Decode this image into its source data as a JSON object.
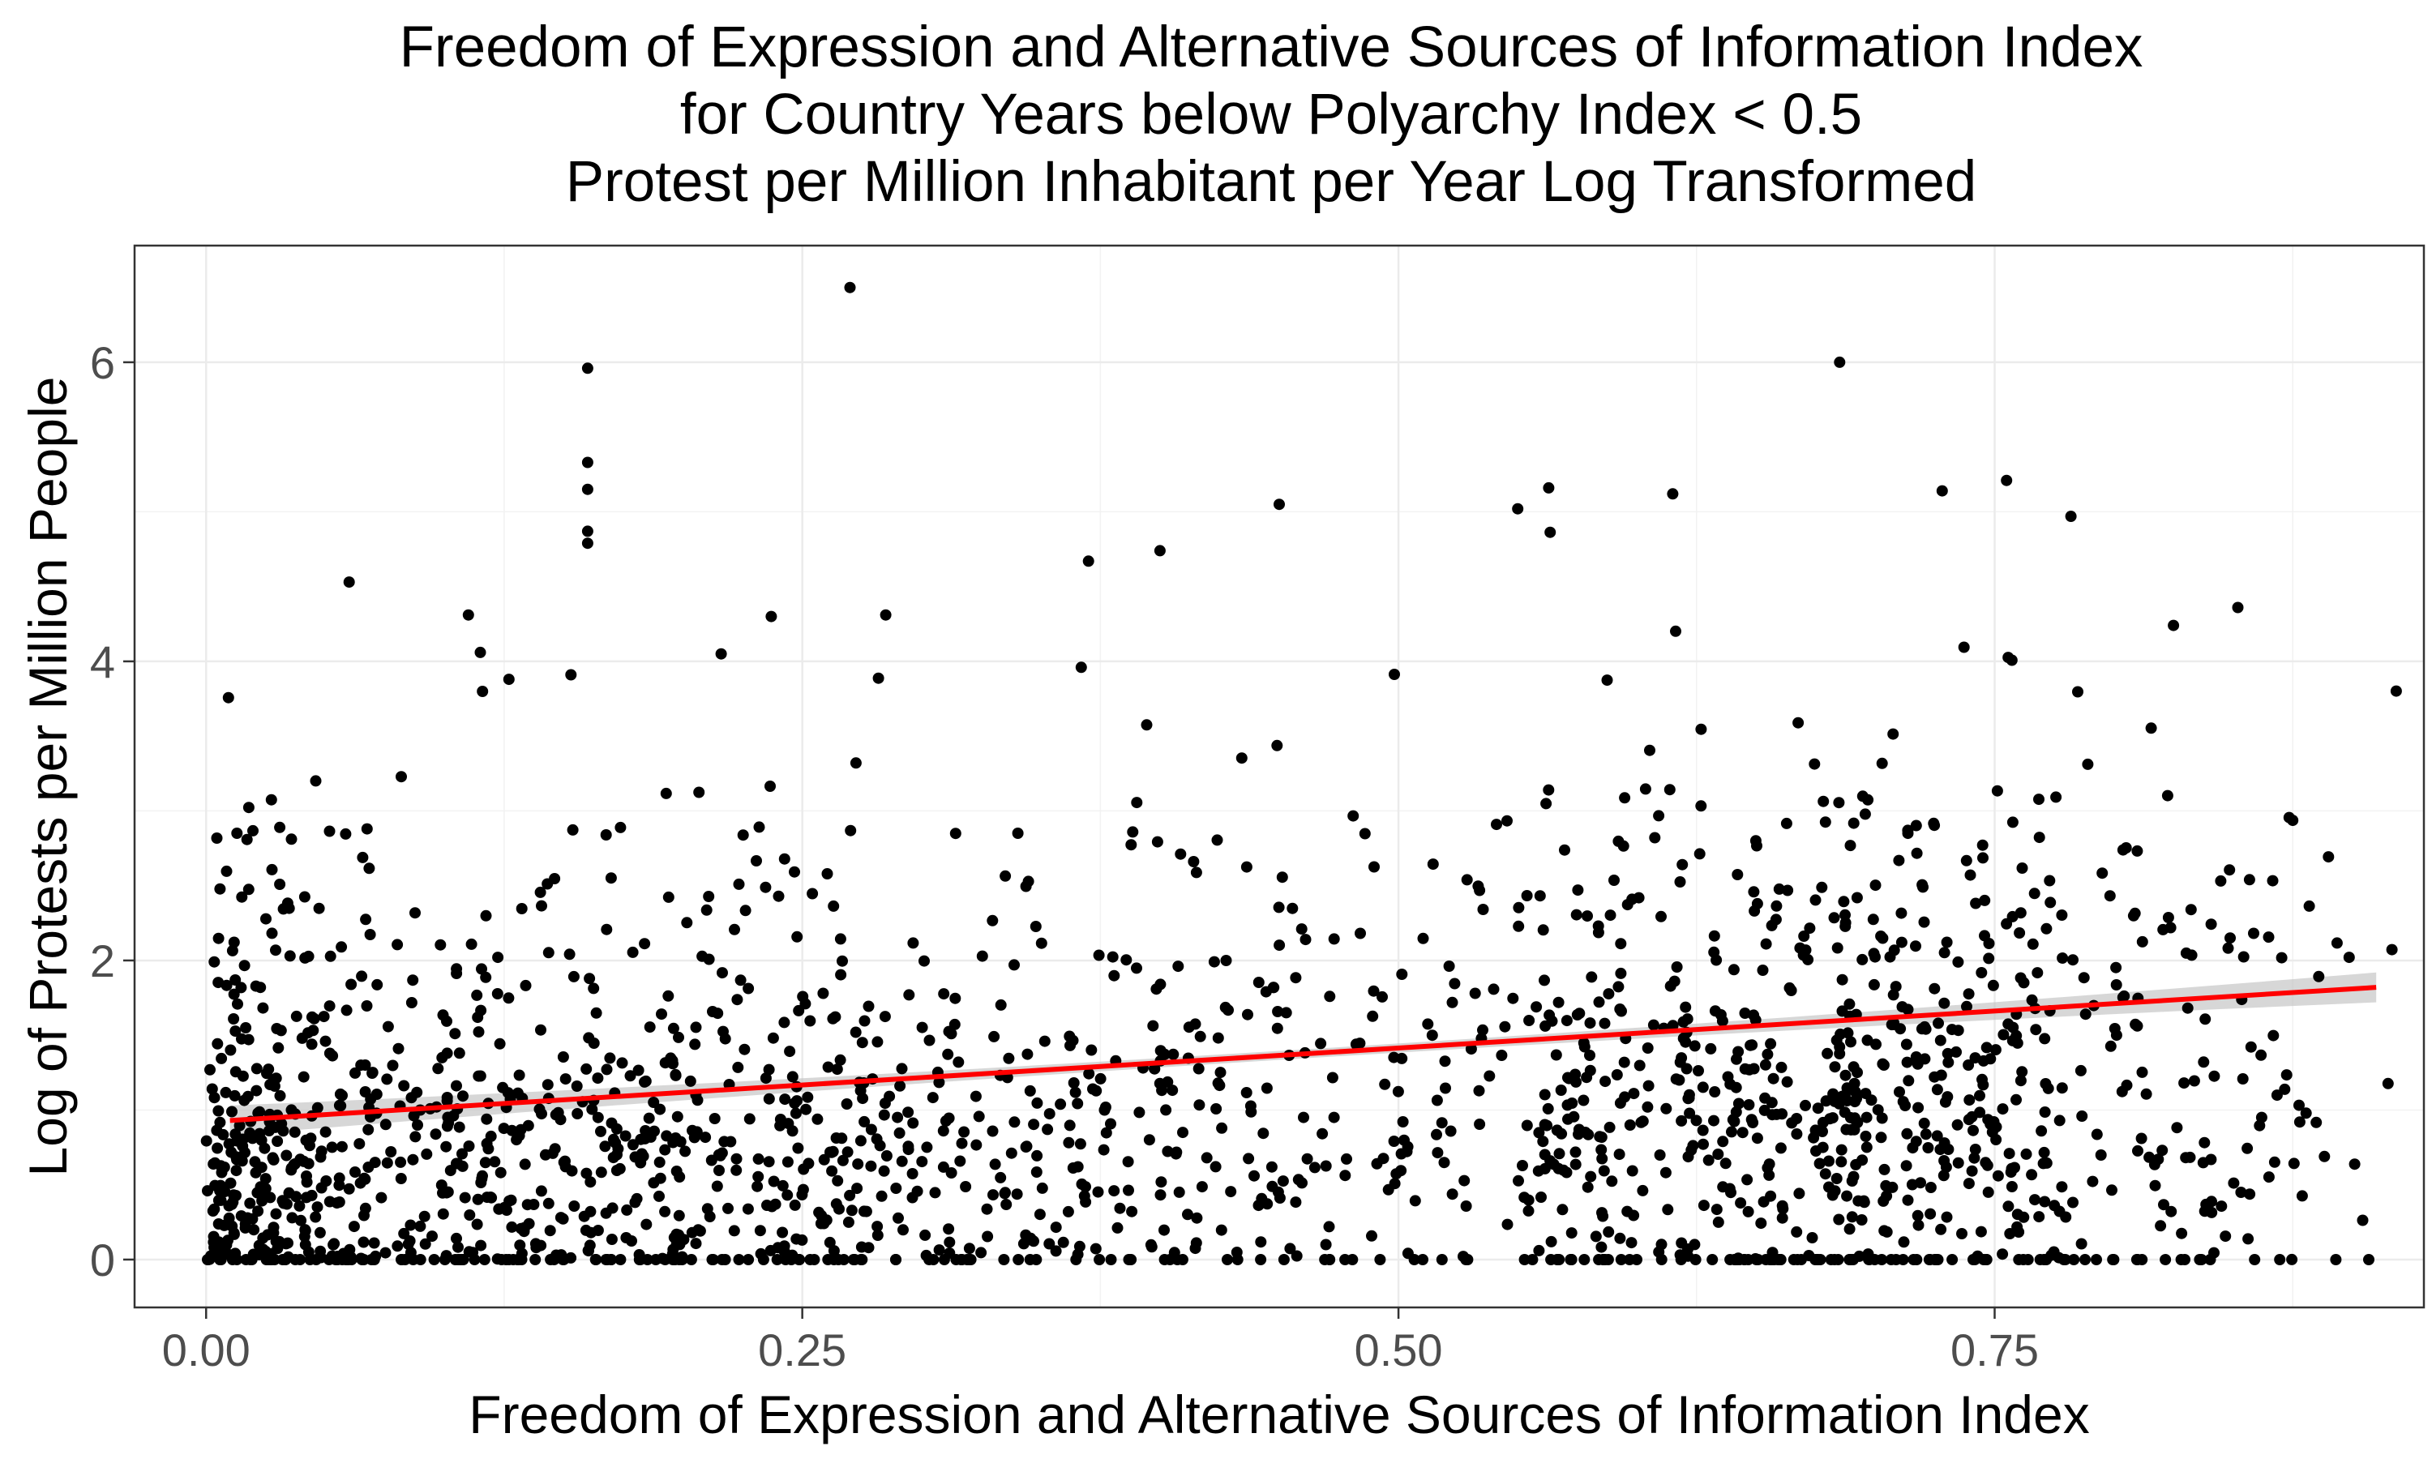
{
  "chart_data": {
    "type": "scatter",
    "title_lines": [
      "Freedom of Expression and Alternative Sources of Information Index",
      "for Country Years below Polyarchy Index < 0.5",
      "Protest per Million Inhabitant per Year Log Transformed"
    ],
    "xlabel": "Freedom of Expression and Alternative Sources of Information Index",
    "ylabel": "Log of Protests per Million People",
    "xlim": [
      -0.03,
      0.93
    ],
    "ylim": [
      -0.32,
      6.78
    ],
    "x_ticks": [
      0.0,
      0.25,
      0.5,
      0.75
    ],
    "x_tick_labels": [
      "0.00",
      "0.25",
      "0.50",
      "0.75"
    ],
    "y_ticks": [
      0,
      2,
      4,
      6
    ],
    "y_tick_labels": [
      "0",
      "2",
      "4",
      "6"
    ],
    "grid": true,
    "theme": "bw",
    "point_color": "#000000",
    "trend_line": {
      "method": "linear",
      "color": "#ff0000",
      "ribbon_color": "#bdbdbd",
      "x": [
        0.01,
        0.91
      ],
      "y": [
        0.93,
        1.82
      ],
      "se": 0.05
    },
    "point_count_note": "approximate reconstruction of ~1900 points",
    "highlighted_points": [
      {
        "x": 0.27,
        "y": 6.5
      },
      {
        "x": 0.16,
        "y": 5.96
      },
      {
        "x": 0.685,
        "y": 6.0
      },
      {
        "x": 0.16,
        "y": 5.33
      },
      {
        "x": 0.16,
        "y": 5.15
      },
      {
        "x": 0.16,
        "y": 4.87
      },
      {
        "x": 0.16,
        "y": 4.79
      },
      {
        "x": 0.615,
        "y": 5.12
      },
      {
        "x": 0.755,
        "y": 5.21
      },
      {
        "x": 0.728,
        "y": 5.14
      },
      {
        "x": 0.563,
        "y": 5.16
      },
      {
        "x": 0.45,
        "y": 5.05
      },
      {
        "x": 0.55,
        "y": 5.02
      },
      {
        "x": 0.782,
        "y": 4.97
      },
      {
        "x": 0.06,
        "y": 4.53
      },
      {
        "x": 0.4,
        "y": 4.74
      },
      {
        "x": 0.37,
        "y": 4.67
      },
      {
        "x": 0.11,
        "y": 4.31
      },
      {
        "x": 0.237,
        "y": 4.3
      },
      {
        "x": 0.285,
        "y": 4.31
      },
      {
        "x": 0.852,
        "y": 4.36
      },
      {
        "x": 0.216,
        "y": 4.05
      },
      {
        "x": 0.115,
        "y": 4.06
      },
      {
        "x": 0.153,
        "y": 3.91
      },
      {
        "x": 0.127,
        "y": 3.88
      },
      {
        "x": 0.367,
        "y": 3.96
      },
      {
        "x": 0.825,
        "y": 4.24
      }
    ]
  }
}
